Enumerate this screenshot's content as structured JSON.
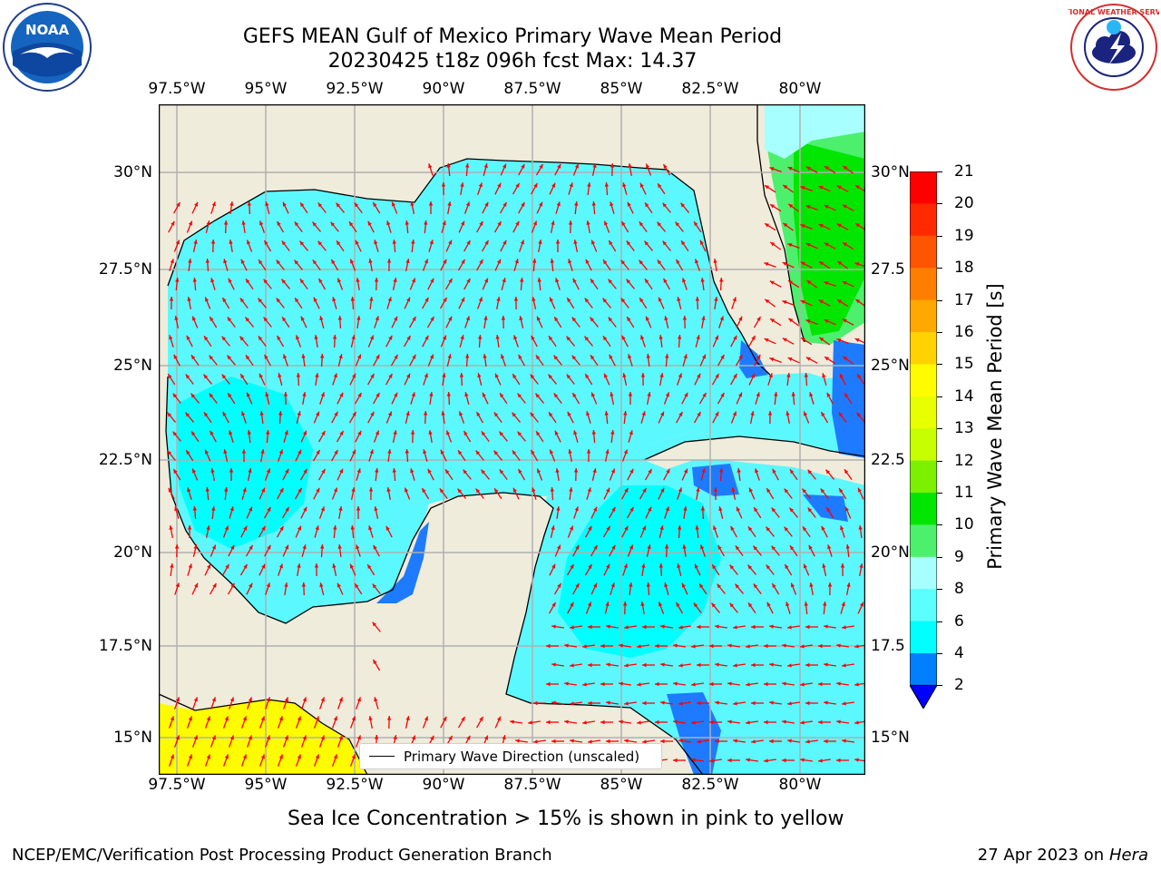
{
  "title": {
    "line1": "GEFS MEAN Gulf of Mexico Primary Wave Mean Period",
    "line2": "20230425 t18z 096h fcst   Max: 14.37"
  },
  "axes": {
    "lon_labels": [
      "97.5°W",
      "95°W",
      "92.5°W",
      "90°W",
      "87.5°W",
      "85°W",
      "82.5°W",
      "80°W"
    ],
    "lat_labels": [
      "30°N",
      "27.5°N",
      "25°N",
      "22.5°N",
      "20°N",
      "17.5°N",
      "15°N"
    ],
    "lat_labels_right": [
      "30°N",
      "27.5",
      "25°N",
      "22.5",
      "20°N",
      "17.5",
      "15°N"
    ]
  },
  "colorbar": {
    "title": "Primary Wave Mean Period [s]",
    "labels": [
      "21",
      "20",
      "19",
      "18",
      "17",
      "16",
      "15",
      "14",
      "13",
      "12",
      "11",
      "10",
      "9",
      "8",
      "6",
      "4",
      "2"
    ],
    "colors": [
      "#ff0000",
      "#ff2a00",
      "#ff5400",
      "#ff7e00",
      "#ffa800",
      "#ffd200",
      "#fffc00",
      "#e8ff00",
      "#c8ff00",
      "#7df000",
      "#00e600",
      "#4cf06c",
      "#a8ffff",
      "#5cffff",
      "#00ffff",
      "#0080ff"
    ],
    "extend_color": "#0000ff"
  },
  "legend": {
    "label": "Primary Wave Direction (unscaled)"
  },
  "footer": {
    "note": "Sea Ice Concentration > 15% is shown in pink to yellow",
    "credit": "NCEP/EMC/Verification Post Processing Product Generation Branch",
    "date_prefix": "27 Apr 2023 on ",
    "date_machine": "Hera"
  },
  "logos": {
    "left": "NOAA",
    "right": "NATIONAL WEATHER SERVICE"
  },
  "map_colors": {
    "land": "#efecdc",
    "water_main": "#5cf8ff",
    "water_light": "#00ffff",
    "water_deep": "#1e7bff",
    "water_green": "#4cf06c",
    "water_bright_green": "#00e600",
    "yellow": "#fffc00",
    "arrow": "#ff0000",
    "grid": "#b0b0b0"
  }
}
